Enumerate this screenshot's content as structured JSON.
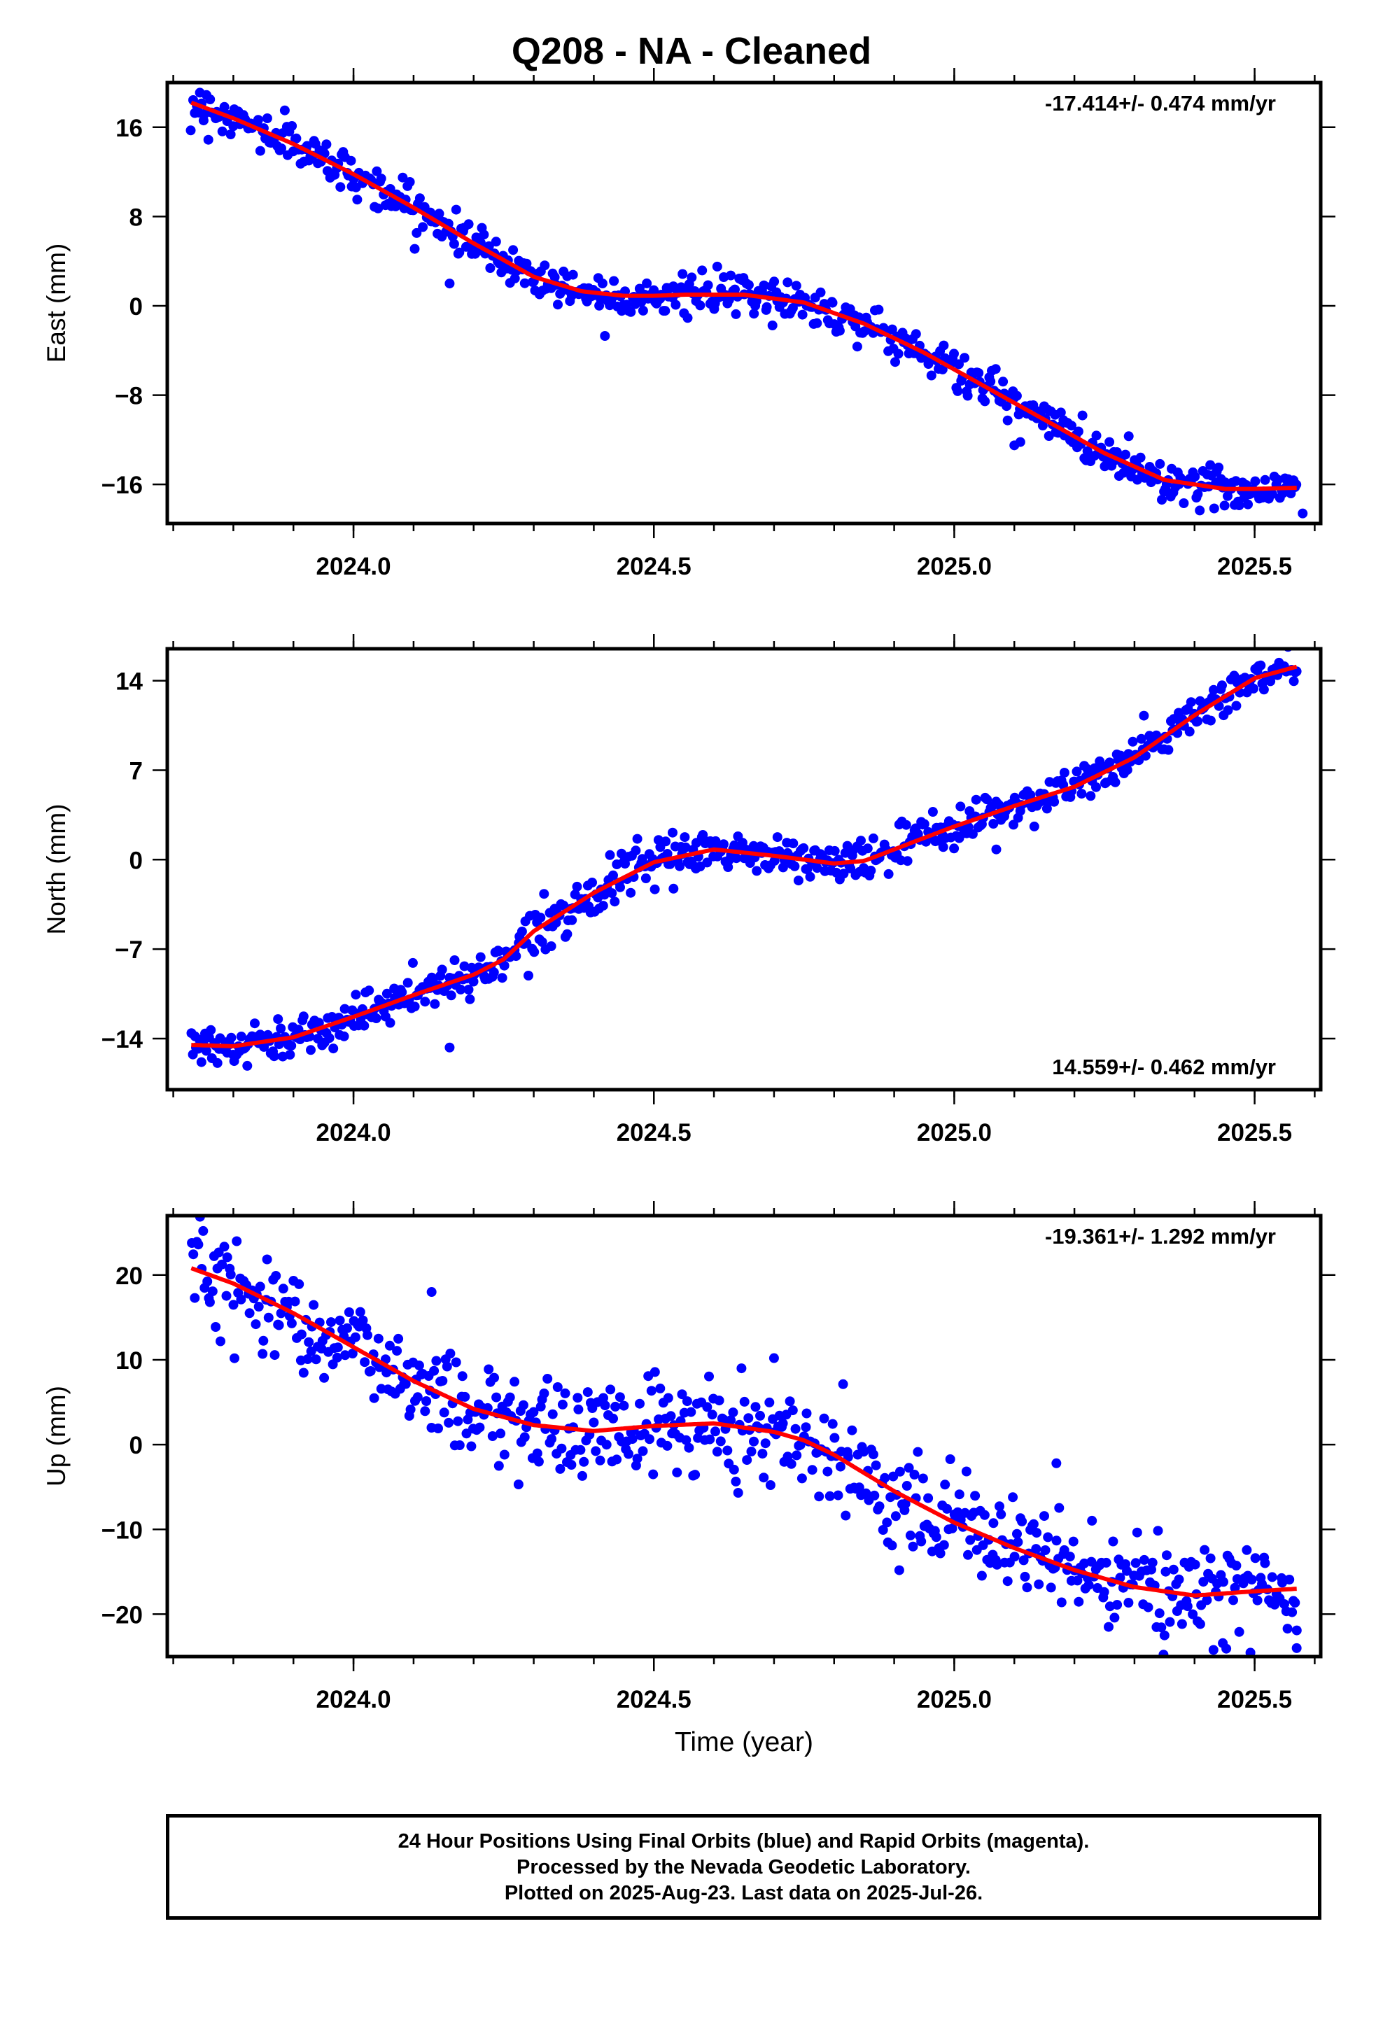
{
  "title": "Q208  - NA - Cleaned",
  "footer": {
    "line1": "24 Hour Positions Using Final Orbits (blue) and Rapid Orbits (magenta).",
    "line2": "Processed by the Nevada Geodetic Laboratory.",
    "line3": "Plotted on 2025-Aug-23. Last data on 2025-Jul-26."
  },
  "colors": {
    "data_points": "#0000ff",
    "trend_line": "#ff0000",
    "axes": "#000000"
  },
  "chart_data": [
    {
      "type": "scatter",
      "ylabel": "East (mm)",
      "xlabel": "",
      "xlim": [
        2023.69,
        2025.61
      ],
      "ylim": [
        -19.5,
        20
      ],
      "xticks": [
        2024.0,
        2024.5,
        2025.0,
        2025.5
      ],
      "xticklabels": [
        "2024.0",
        "2024.5",
        "2025.0",
        "2025.5"
      ],
      "yticks": [
        16,
        8,
        0,
        -8,
        -16
      ],
      "yticklabels": [
        "16",
        "8",
        "0",
        "−8",
        "−16"
      ],
      "annotation": "-17.414+/- 0.474 mm/yr",
      "annotation_position": "top-right",
      "trend": {
        "x": [
          2023.73,
          2023.8,
          2023.9,
          2024.0,
          2024.1,
          2024.2,
          2024.3,
          2024.38,
          2024.45,
          2024.5,
          2024.55,
          2024.65,
          2024.75,
          2024.85,
          2024.95,
          2025.05,
          2025.15,
          2025.25,
          2025.35,
          2025.45,
          2025.5,
          2025.57
        ],
        "y": [
          18.2,
          16.8,
          14.5,
          11.8,
          8.8,
          5.6,
          2.6,
          1.3,
          0.9,
          0.9,
          1.0,
          1.0,
          0.3,
          -1.6,
          -4.2,
          -7.2,
          -10.2,
          -13.2,
          -15.6,
          -16.4,
          -16.4,
          -16.3
        ]
      },
      "points": {
        "noise": 0.9,
        "outliers": [
          [
            2024.16,
            2.0
          ],
          [
            2025.1,
            -12.5
          ],
          [
            2025.11,
            -12.2
          ],
          [
            2025.58,
            -18.6
          ]
        ]
      }
    },
    {
      "type": "scatter",
      "ylabel": "North (mm)",
      "xlabel": "",
      "xlim": [
        2023.69,
        2025.61
      ],
      "ylim": [
        -18,
        16.5
      ],
      "xticks": [
        2024.0,
        2024.5,
        2025.0,
        2025.5
      ],
      "xticklabels": [
        "2024.0",
        "2024.5",
        "2025.0",
        "2025.5"
      ],
      "yticks": [
        14,
        7,
        0,
        -7,
        -14
      ],
      "yticklabels": [
        "14",
        "7",
        "0",
        "−7",
        "−14"
      ],
      "annotation": "14.559+/- 0.462 mm/yr",
      "annotation_position": "bottom-right",
      "trend": {
        "x": [
          2023.73,
          2023.8,
          2023.9,
          2024.0,
          2024.1,
          2024.2,
          2024.25,
          2024.3,
          2024.4,
          2024.5,
          2024.6,
          2024.7,
          2024.8,
          2024.85,
          2024.9,
          2025.0,
          2025.1,
          2025.2,
          2025.3,
          2025.4,
          2025.5,
          2025.57
        ],
        "y": [
          -14.5,
          -14.6,
          -13.9,
          -12.3,
          -10.6,
          -9.0,
          -7.8,
          -5.6,
          -2.6,
          -0.2,
          0.8,
          0.3,
          -0.3,
          -0.1,
          0.8,
          2.6,
          4.2,
          5.7,
          8.0,
          11.3,
          14.2,
          15.1
        ]
      },
      "points": {
        "noise": 0.8,
        "outliers": [
          [
            2024.16,
            -14.7
          ],
          [
            2025.07,
            0.8
          ],
          [
            2024.57,
            -0.7
          ]
        ]
      }
    },
    {
      "type": "scatter",
      "ylabel": "Up (mm)",
      "xlabel": "Time (year)",
      "xlim": [
        2023.69,
        2025.61
      ],
      "ylim": [
        -25,
        27
      ],
      "xticks": [
        2024.0,
        2024.5,
        2025.0,
        2025.5
      ],
      "xticklabels": [
        "2024.0",
        "2024.5",
        "2025.0",
        "2025.5"
      ],
      "yticks": [
        20,
        10,
        0,
        -10,
        -20
      ],
      "yticklabels": [
        "20",
        "10",
        "0",
        "−10",
        "−20"
      ],
      "annotation": "-19.361+/- 1.292 mm/yr",
      "annotation_position": "top-right",
      "trend": {
        "x": [
          2023.73,
          2023.8,
          2023.9,
          2024.0,
          2024.1,
          2024.2,
          2024.3,
          2024.4,
          2024.5,
          2024.6,
          2024.7,
          2024.75,
          2024.8,
          2024.9,
          2025.0,
          2025.1,
          2025.2,
          2025.3,
          2025.4,
          2025.5,
          2025.57
        ],
        "y": [
          20.8,
          19.0,
          15.5,
          11.5,
          7.5,
          4.2,
          2.3,
          1.6,
          2.2,
          2.5,
          1.5,
          0.5,
          -1.2,
          -5.5,
          -9.2,
          -12.2,
          -14.8,
          -16.8,
          -17.8,
          -17.3,
          -17.0
        ]
      },
      "points": {
        "noise": 2.8,
        "outliers": [
          [
            2024.7,
            10.2
          ],
          [
            2024.13,
            18.0
          ],
          [
            2025.57,
            -24.0
          ],
          [
            2025.35,
            -22.5
          ],
          [
            2025.17,
            -2.2
          ]
        ]
      }
    }
  ]
}
